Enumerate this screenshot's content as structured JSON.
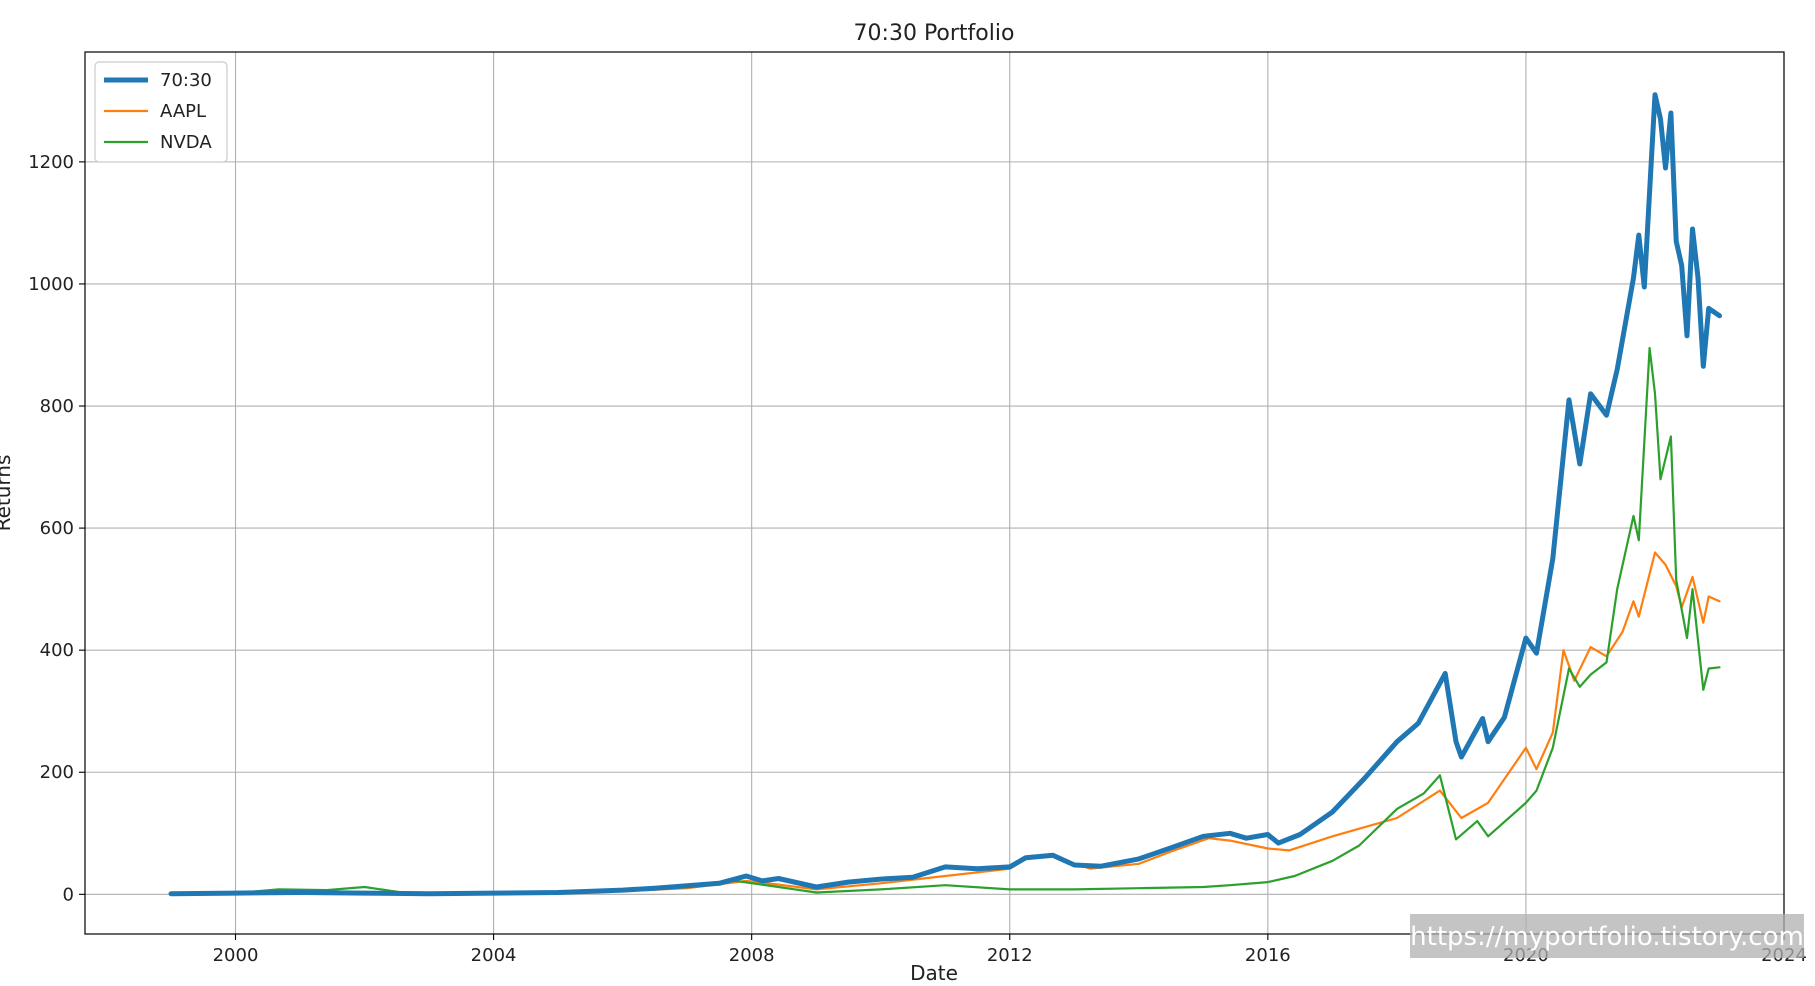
{
  "chart_data": {
    "type": "line",
    "title": "70:30 Portfolio",
    "xlabel": "Date",
    "ylabel": "Returns",
    "xlim": [
      "1997-09-01",
      "2024-01-01"
    ],
    "ylim": [
      -65,
      1380
    ],
    "grid": true,
    "legend_position": "top-left",
    "x_ticks": [
      "2000",
      "2004",
      "2008",
      "2012",
      "2016",
      "2020",
      "2024"
    ],
    "y_ticks": [
      0,
      200,
      400,
      600,
      800,
      1000,
      1200
    ],
    "series": [
      {
        "name": "70:30",
        "color": "#1f77b4",
        "linewidth": "thick",
        "points": [
          [
            "1999-01-01",
            1
          ],
          [
            "2000-01-01",
            2
          ],
          [
            "2001-01-01",
            3
          ],
          [
            "2002-01-01",
            2
          ],
          [
            "2003-01-01",
            1
          ],
          [
            "2004-01-01",
            2
          ],
          [
            "2005-01-01",
            3
          ],
          [
            "2006-01-01",
            7
          ],
          [
            "2006-07-01",
            10
          ],
          [
            "2007-01-01",
            14
          ],
          [
            "2007-07-01",
            18
          ],
          [
            "2007-12-01",
            30
          ],
          [
            "2008-03-01",
            22
          ],
          [
            "2008-06-01",
            26
          ],
          [
            "2009-01-01",
            12
          ],
          [
            "2009-07-01",
            20
          ],
          [
            "2010-01-01",
            25
          ],
          [
            "2010-07-01",
            28
          ],
          [
            "2011-01-01",
            45
          ],
          [
            "2011-07-01",
            42
          ],
          [
            "2012-01-01",
            45
          ],
          [
            "2012-04-01",
            60
          ],
          [
            "2012-09-01",
            64
          ],
          [
            "2013-01-01",
            48
          ],
          [
            "2013-06-01",
            46
          ],
          [
            "2014-01-01",
            58
          ],
          [
            "2014-07-01",
            76
          ],
          [
            "2015-01-01",
            95
          ],
          [
            "2015-06-01",
            100
          ],
          [
            "2015-09-01",
            92
          ],
          [
            "2016-01-01",
            98
          ],
          [
            "2016-03-01",
            84
          ],
          [
            "2016-07-01",
            98
          ],
          [
            "2017-01-01",
            135
          ],
          [
            "2017-07-01",
            190
          ],
          [
            "2018-01-01",
            250
          ],
          [
            "2018-05-01",
            280
          ],
          [
            "2018-10-01",
            362
          ],
          [
            "2018-12-01",
            250
          ],
          [
            "2019-01-01",
            225
          ],
          [
            "2019-05-01",
            288
          ],
          [
            "2019-06-01",
            250
          ],
          [
            "2019-09-01",
            290
          ],
          [
            "2020-01-01",
            420
          ],
          [
            "2020-03-01",
            395
          ],
          [
            "2020-06-01",
            550
          ],
          [
            "2020-09-01",
            810
          ],
          [
            "2020-11-01",
            705
          ],
          [
            "2021-01-01",
            820
          ],
          [
            "2021-04-01",
            785
          ],
          [
            "2021-06-01",
            860
          ],
          [
            "2021-09-01",
            1010
          ],
          [
            "2021-10-01",
            1080
          ],
          [
            "2021-11-01",
            995
          ],
          [
            "2022-01-01",
            1310
          ],
          [
            "2022-02-01",
            1270
          ],
          [
            "2022-03-01",
            1190
          ],
          [
            "2022-04-01",
            1280
          ],
          [
            "2022-05-01",
            1070
          ],
          [
            "2022-06-01",
            1030
          ],
          [
            "2022-07-01",
            915
          ],
          [
            "2022-08-01",
            1090
          ],
          [
            "2022-09-01",
            1010
          ],
          [
            "2022-10-01",
            865
          ],
          [
            "2022-11-01",
            960
          ],
          [
            "2023-01-01",
            948
          ]
        ]
      },
      {
        "name": "AAPL",
        "color": "#ff7f0e",
        "linewidth": "normal",
        "points": [
          [
            "1999-01-01",
            0
          ],
          [
            "2000-01-01",
            2
          ],
          [
            "2001-01-01",
            1
          ],
          [
            "2002-01-01",
            2
          ],
          [
            "2003-01-01",
            0
          ],
          [
            "2004-01-01",
            1
          ],
          [
            "2005-01-01",
            3
          ],
          [
            "2006-01-01",
            5
          ],
          [
            "2007-01-01",
            10
          ],
          [
            "2007-12-01",
            22
          ],
          [
            "2008-06-01",
            16
          ],
          [
            "2009-01-01",
            8
          ],
          [
            "2010-01-01",
            18
          ],
          [
            "2011-01-01",
            30
          ],
          [
            "2012-01-01",
            42
          ],
          [
            "2012-04-01",
            58
          ],
          [
            "2012-09-01",
            62
          ],
          [
            "2013-04-01",
            42
          ],
          [
            "2014-01-01",
            50
          ],
          [
            "2014-07-01",
            70
          ],
          [
            "2015-02-01",
            92
          ],
          [
            "2015-06-01",
            88
          ],
          [
            "2016-01-01",
            75
          ],
          [
            "2016-05-01",
            72
          ],
          [
            "2017-01-01",
            95
          ],
          [
            "2017-07-01",
            110
          ],
          [
            "2018-01-01",
            125
          ],
          [
            "2018-09-01",
            170
          ],
          [
            "2019-01-01",
            125
          ],
          [
            "2019-06-01",
            150
          ],
          [
            "2020-01-01",
            240
          ],
          [
            "2020-03-01",
            205
          ],
          [
            "2020-06-01",
            265
          ],
          [
            "2020-08-01",
            400
          ],
          [
            "2020-10-01",
            350
          ],
          [
            "2021-01-01",
            405
          ],
          [
            "2021-04-01",
            390
          ],
          [
            "2021-07-01",
            430
          ],
          [
            "2021-09-01",
            480
          ],
          [
            "2021-10-01",
            455
          ],
          [
            "2022-01-01",
            560
          ],
          [
            "2022-03-01",
            540
          ],
          [
            "2022-05-01",
            505
          ],
          [
            "2022-06-01",
            470
          ],
          [
            "2022-08-01",
            520
          ],
          [
            "2022-10-01",
            445
          ],
          [
            "2022-11-01",
            488
          ],
          [
            "2023-01-01",
            480
          ]
        ]
      },
      {
        "name": "NVDA",
        "color": "#2ca02c",
        "linewidth": "normal",
        "points": [
          [
            "1999-01-01",
            0
          ],
          [
            "2000-01-01",
            2
          ],
          [
            "2000-09-01",
            8
          ],
          [
            "2001-06-01",
            7
          ],
          [
            "2002-01-01",
            12
          ],
          [
            "2002-08-01",
            3
          ],
          [
            "2003-06-01",
            2
          ],
          [
            "2004-06-01",
            1
          ],
          [
            "2005-06-01",
            3
          ],
          [
            "2006-06-01",
            8
          ],
          [
            "2007-01-01",
            12
          ],
          [
            "2007-10-01",
            22
          ],
          [
            "2008-06-01",
            12
          ],
          [
            "2009-01-01",
            3
          ],
          [
            "2010-01-01",
            8
          ],
          [
            "2011-01-01",
            15
          ],
          [
            "2012-01-01",
            8
          ],
          [
            "2013-01-01",
            8
          ],
          [
            "2014-01-01",
            10
          ],
          [
            "2015-01-01",
            12
          ],
          [
            "2015-06-01",
            15
          ],
          [
            "2016-01-01",
            20
          ],
          [
            "2016-06-01",
            30
          ],
          [
            "2017-01-01",
            55
          ],
          [
            "2017-06-01",
            80
          ],
          [
            "2018-01-01",
            140
          ],
          [
            "2018-06-01",
            165
          ],
          [
            "2018-09-01",
            195
          ],
          [
            "2018-12-01",
            90
          ],
          [
            "2019-04-01",
            120
          ],
          [
            "2019-06-01",
            95
          ],
          [
            "2020-01-01",
            150
          ],
          [
            "2020-03-01",
            170
          ],
          [
            "2020-06-01",
            240
          ],
          [
            "2020-09-01",
            370
          ],
          [
            "2020-11-01",
            340
          ],
          [
            "2021-01-01",
            360
          ],
          [
            "2021-04-01",
            380
          ],
          [
            "2021-06-01",
            500
          ],
          [
            "2021-09-01",
            620
          ],
          [
            "2021-10-01",
            580
          ],
          [
            "2021-12-01",
            895
          ],
          [
            "2022-01-01",
            820
          ],
          [
            "2022-02-01",
            680
          ],
          [
            "2022-04-01",
            750
          ],
          [
            "2022-05-01",
            515
          ],
          [
            "2022-07-01",
            420
          ],
          [
            "2022-08-01",
            500
          ],
          [
            "2022-10-01",
            335
          ],
          [
            "2022-11-01",
            370
          ],
          [
            "2023-01-01",
            372
          ]
        ]
      }
    ]
  },
  "watermark": "https://myportfolio.tistory.com"
}
